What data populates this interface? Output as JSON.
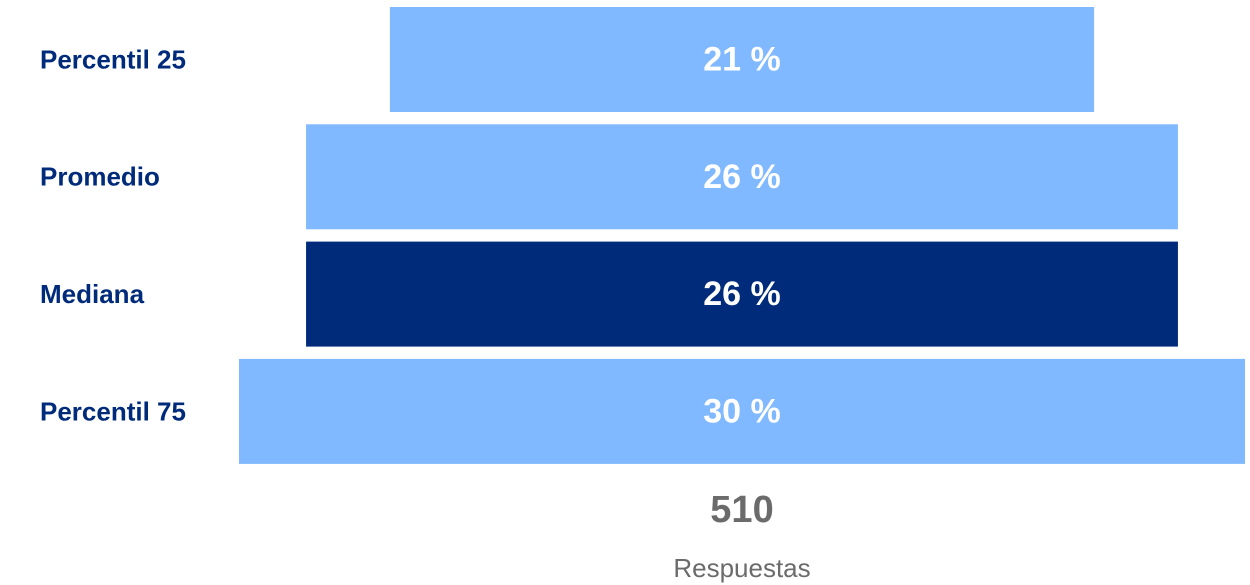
{
  "chart_data": {
    "type": "funnel",
    "categories": [
      "Percentil 25",
      "Promedio",
      "Mediana",
      "Percentil 75"
    ],
    "values": [
      21,
      26,
      26,
      30
    ],
    "value_labels": [
      "21 %",
      "26 %",
      "26 %",
      "30 %"
    ],
    "colors": [
      "#80b9ff",
      "#80b9ff",
      "#002b7a",
      "#80b9ff"
    ],
    "total": 510,
    "total_label": "Respuestas"
  }
}
